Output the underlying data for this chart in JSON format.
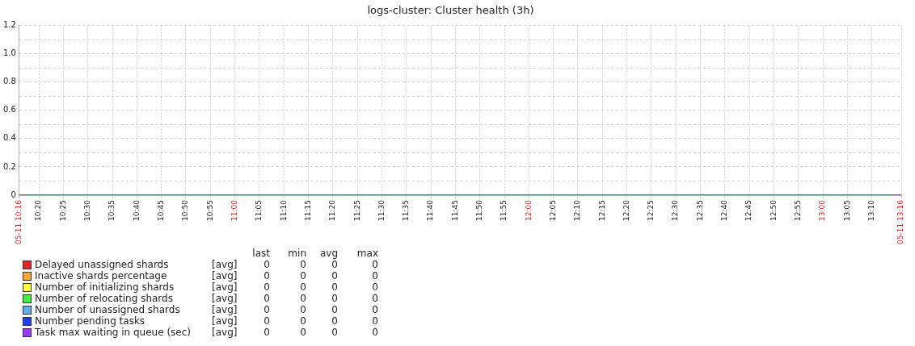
{
  "chart_data": {
    "type": "line",
    "title": "logs-cluster: Cluster health (3h)",
    "x": [
      10.2667,
      13.2667
    ],
    "xlim": [
      10.2667,
      13.2667
    ],
    "xticks": [
      {
        "value": 10.2667,
        "label": "05-11 10:16"
      },
      {
        "value": 10.3333,
        "label": "10:20"
      },
      {
        "value": 10.4167,
        "label": "10:25"
      },
      {
        "value": 10.5,
        "label": "10:30"
      },
      {
        "value": 10.5833,
        "label": "10:35"
      },
      {
        "value": 10.6667,
        "label": "10:40"
      },
      {
        "value": 10.75,
        "label": "10:45"
      },
      {
        "value": 10.8333,
        "label": "10:50"
      },
      {
        "value": 10.9167,
        "label": "10:55"
      },
      {
        "value": 11,
        "label": "11:00"
      },
      {
        "value": 11.0833,
        "label": "11:05"
      },
      {
        "value": 11.1667,
        "label": "11:10"
      },
      {
        "value": 11.25,
        "label": "11:15"
      },
      {
        "value": 11.3333,
        "label": "11:20"
      },
      {
        "value": 11.4167,
        "label": "11:25"
      },
      {
        "value": 11.5,
        "label": "11:30"
      },
      {
        "value": 11.5833,
        "label": "11:35"
      },
      {
        "value": 11.6667,
        "label": "11:40"
      },
      {
        "value": 11.75,
        "label": "11:45"
      },
      {
        "value": 11.8333,
        "label": "11:50"
      },
      {
        "value": 11.9167,
        "label": "11:55"
      },
      {
        "value": 12,
        "label": "12:00"
      },
      {
        "value": 12.0833,
        "label": "12:05"
      },
      {
        "value": 12.1667,
        "label": "12:10"
      },
      {
        "value": 12.25,
        "label": "12:15"
      },
      {
        "value": 12.3333,
        "label": "12:20"
      },
      {
        "value": 12.4167,
        "label": "12:25"
      },
      {
        "value": 12.5,
        "label": "12:30"
      },
      {
        "value": 12.5833,
        "label": "12:35"
      },
      {
        "value": 12.6667,
        "label": "12:40"
      },
      {
        "value": 12.75,
        "label": "12:45"
      },
      {
        "value": 12.8333,
        "label": "12:50"
      },
      {
        "value": 12.9167,
        "label": "12:55"
      },
      {
        "value": 13,
        "label": "13:00"
      },
      {
        "value": 13.0833,
        "label": "13:05"
      },
      {
        "value": 13.1667,
        "label": "13:10"
      },
      {
        "value": 13.2667,
        "label": "05-11 13:16"
      }
    ],
    "ylim": [
      0,
      1.2
    ],
    "yticks": [
      0,
      {
        "value": 0.1,
        "label": null
      },
      0.2,
      {
        "value": 0.3,
        "label": null
      },
      0.4,
      {
        "value": 0.5,
        "label": null
      },
      0.6,
      {
        "value": 0.7,
        "label": null
      },
      0.8,
      {
        "value": 0.9,
        "label": null
      },
      {
        "value": 1,
        "label": "1.0"
      },
      {
        "value": 1.1,
        "label": null
      },
      1.2
    ],
    "grid": true,
    "legend": "bottom left",
    "marker": "none",
    "line_style": "solid",
    "series": [
      {
        "name": "Delayed unassigned shards",
        "color": "#e02828",
        "values": [
          null,
          null
        ]
      },
      {
        "name": "Inactive shards percentage",
        "color": "#ffa838",
        "values": [
          null,
          null
        ]
      },
      {
        "name": "Number of initializing shards",
        "color": "#ffff40",
        "values": [
          null,
          null
        ]
      },
      {
        "name": "Number of relocating shards",
        "color": "#40f040",
        "values": [
          null,
          null
        ]
      },
      {
        "name": "Number of unassigned shards",
        "color": "#60b0f0",
        "values": [
          null,
          null
        ]
      },
      {
        "name": "Number pending tasks",
        "color": "#2040f8",
        "values": [
          null,
          null
        ]
      },
      {
        "name": "Task max waiting in queue (sec)",
        "color": "#9838f8",
        "values": [
          0,
          0
        ]
      }
    ],
    "annotations": [
      "last",
      "min",
      "avg",
      "max",
      "[avg]",
      "0",
      "0",
      "0",
      "0",
      "[avg]",
      "0",
      "0",
      "0",
      "0",
      "[avg]",
      "0",
      "0",
      "0",
      "0",
      "[avg]",
      "0",
      "0",
      "0",
      "0",
      "[avg]",
      "0",
      "0",
      "0",
      "0",
      "[avg]",
      "0",
      "0",
      "0",
      "0",
      "[avg]",
      "0",
      "0",
      "0",
      "0"
    ]
  }
}
